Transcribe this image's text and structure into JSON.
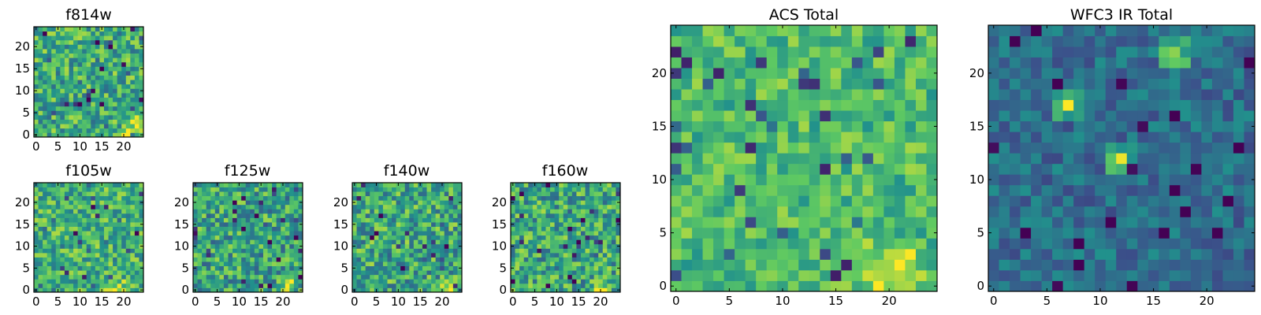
{
  "figure": {
    "colormap": "viridis",
    "colormap_stops": [
      "#440154",
      "#3b528b",
      "#21918c",
      "#5ec962",
      "#fde725"
    ],
    "background": "#ffffff"
  },
  "chart_data": [
    {
      "id": "f814w",
      "type": "heatmap",
      "title": "f814w",
      "grid_size": 25,
      "xlim": [
        -0.5,
        24.5
      ],
      "ylim": [
        -0.5,
        24.5
      ],
      "xticks": [
        0,
        5,
        10,
        15,
        20
      ],
      "yticks": [
        0,
        5,
        10,
        15,
        20
      ],
      "value_range": [
        0,
        1
      ],
      "mean_level": 0.62,
      "variation": 0.26,
      "hotspots": [
        {
          "col": 21,
          "row": 1,
          "radius": 3,
          "strength": 0.35
        }
      ],
      "seed": 11
    },
    {
      "id": "f105w",
      "type": "heatmap",
      "title": "f105w",
      "grid_size": 25,
      "xlim": [
        -0.5,
        24.5
      ],
      "ylim": [
        -0.5,
        24.5
      ],
      "xticks": [
        0,
        5,
        10,
        15,
        20
      ],
      "yticks": [
        0,
        5,
        10,
        15,
        20
      ],
      "value_range": [
        0,
        1
      ],
      "mean_level": 0.64,
      "variation": 0.24,
      "hotspots": [
        {
          "col": 18,
          "row": 0,
          "radius": 2,
          "strength": 0.35
        }
      ],
      "seed": 23
    },
    {
      "id": "f125w",
      "type": "heatmap",
      "title": "f125w",
      "grid_size": 25,
      "xlim": [
        -0.5,
        24.5
      ],
      "ylim": [
        -0.5,
        24.5
      ],
      "xticks": [
        0,
        5,
        10,
        15,
        20
      ],
      "yticks": [
        0,
        5,
        10,
        15,
        20
      ],
      "value_range": [
        0,
        1
      ],
      "mean_level": 0.58,
      "variation": 0.27,
      "hotspots": [
        {
          "col": 21,
          "row": 1,
          "radius": 2,
          "strength": 0.3
        }
      ],
      "seed": 37
    },
    {
      "id": "f140w",
      "type": "heatmap",
      "title": "f140w",
      "grid_size": 25,
      "xlim": [
        -0.5,
        24.5
      ],
      "ylim": [
        -0.5,
        24.5
      ],
      "xticks": [
        0,
        5,
        10,
        15,
        20
      ],
      "yticks": [
        0,
        5,
        10,
        15,
        20
      ],
      "value_range": [
        0,
        1
      ],
      "mean_level": 0.6,
      "variation": 0.27,
      "hotspots": [
        {
          "col": 21,
          "row": 0,
          "radius": 2,
          "strength": 0.35
        }
      ],
      "seed": 51
    },
    {
      "id": "f160w",
      "type": "heatmap",
      "title": "f160w",
      "grid_size": 25,
      "xlim": [
        -0.5,
        24.5
      ],
      "ylim": [
        -0.5,
        24.5
      ],
      "xticks": [
        0,
        5,
        10,
        15,
        20
      ],
      "yticks": [
        0,
        5,
        10,
        15,
        20
      ],
      "value_range": [
        0,
        1
      ],
      "mean_level": 0.6,
      "variation": 0.27,
      "hotspots": [
        {
          "col": 20,
          "row": 0,
          "radius": 2,
          "strength": 0.4
        }
      ],
      "seed": 67
    },
    {
      "id": "acs-total",
      "type": "heatmap",
      "title": "ACS Total",
      "grid_size": 25,
      "xlim": [
        -0.5,
        24.5
      ],
      "ylim": [
        -0.5,
        24.5
      ],
      "xticks": [
        0,
        5,
        10,
        15,
        20
      ],
      "yticks": [
        0,
        5,
        10,
        15,
        20
      ],
      "value_range": [
        0,
        1
      ],
      "mean_level": 0.68,
      "variation": 0.18,
      "hotspots": [
        {
          "col": 20,
          "row": 1,
          "radius": 3,
          "strength": 0.3
        }
      ],
      "seed": 83
    },
    {
      "id": "wfc3-ir-total",
      "type": "heatmap",
      "title": "WFC3 IR Total",
      "grid_size": 25,
      "xlim": [
        -0.5,
        24.5
      ],
      "ylim": [
        -0.5,
        24.5
      ],
      "xticks": [
        0,
        5,
        10,
        15,
        20
      ],
      "yticks": [
        0,
        5,
        10,
        15,
        20
      ],
      "value_range": [
        0,
        1
      ],
      "mean_level": 0.36,
      "variation": 0.14,
      "hotspots": [
        {
          "col": 17,
          "row": 22,
          "radius": 1,
          "strength": 0.55
        },
        {
          "col": 7,
          "row": 17,
          "radius": 1,
          "strength": 0.55
        },
        {
          "col": 12,
          "row": 12,
          "radius": 1,
          "strength": 0.5
        }
      ],
      "seed": 97
    }
  ]
}
